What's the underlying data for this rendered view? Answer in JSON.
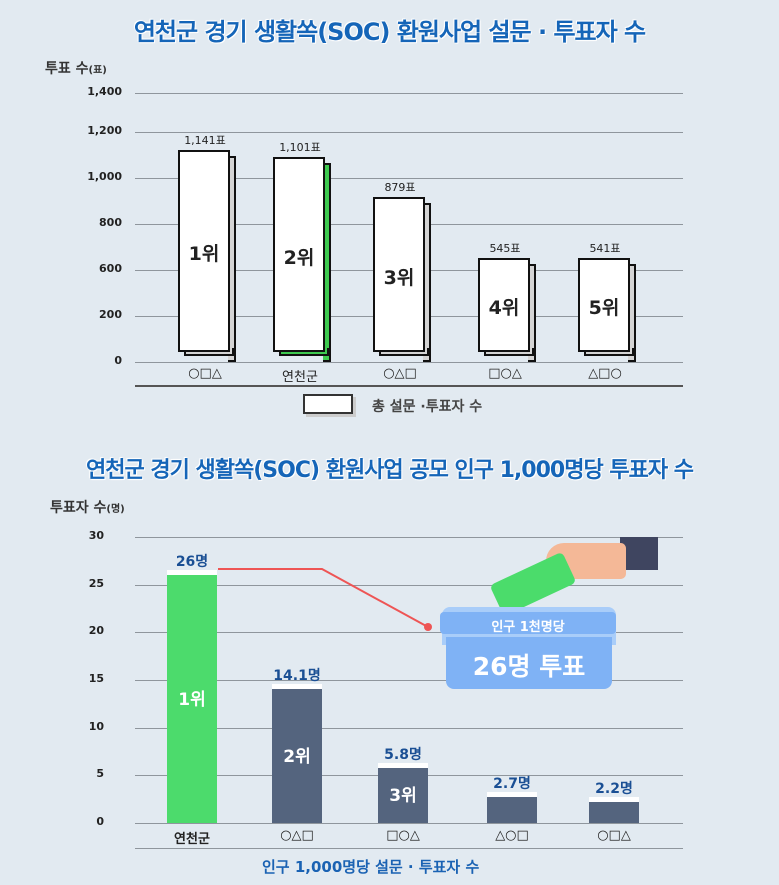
{
  "chart_data": [
    {
      "type": "bar",
      "title": "연천군 경기 생활쏙(SOC) 환원사업 설문 · 투표자  수",
      "ylabel": "투표 수",
      "ylabel_unit": "(표)",
      "ytick_labels": [
        "1,400",
        "1,200",
        "1,000",
        "800",
        "600",
        "200",
        "0"
      ],
      "ylim": [
        0,
        1400
      ],
      "categories": [
        "○□△",
        "연천군",
        "○△□",
        "□○△",
        "△□○"
      ],
      "values": [
        1141,
        1101,
        879,
        545,
        541
      ],
      "value_labels": [
        "1,141표",
        "1,101표",
        "879표",
        "545표",
        "541표"
      ],
      "rank_labels": [
        "1위",
        "2위",
        "3위",
        "4위",
        "5위"
      ],
      "highlight_category": "연천군",
      "highlight_color": "#3ec94f",
      "bar_color": "#ffffff",
      "legend": {
        "label": "총 설문 ·투표자 수",
        "placement": "bottom"
      },
      "grid": true
    },
    {
      "type": "bar",
      "title": "연천군 경기 생활쏙(SOC) 환원사업 공모 인구 1,000명당 투표자 수",
      "ylabel": "투표자 수",
      "ylabel_unit": "(명)",
      "yticks": [
        0,
        5,
        10,
        15,
        20,
        25,
        30
      ],
      "ylim": [
        0,
        30
      ],
      "categories": [
        "연천군",
        "○△□",
        "□○△",
        "△○□",
        "○□△"
      ],
      "values": [
        26,
        14.1,
        5.8,
        2.7,
        2.2
      ],
      "value_labels": [
        "26명",
        "14.1명",
        "5.8명",
        "2.7명",
        "2.2명"
      ],
      "rank_labels": [
        "1위",
        "2위",
        "3위",
        "",
        ""
      ],
      "highlight_category": "연천군",
      "highlight_color": "#4cdb6c",
      "bar_color": "#54647e",
      "xlabel": "인구 1,000명당 설문 · 투표자 수",
      "grid": true,
      "annotation": {
        "line1": "인구 1천명당",
        "line2": "26명 투표"
      }
    }
  ],
  "colors": {
    "title": "#1565b8",
    "background": "#e2eaf1",
    "callout_line": "#ee5555",
    "ballot_box": "#7fb2f5"
  }
}
